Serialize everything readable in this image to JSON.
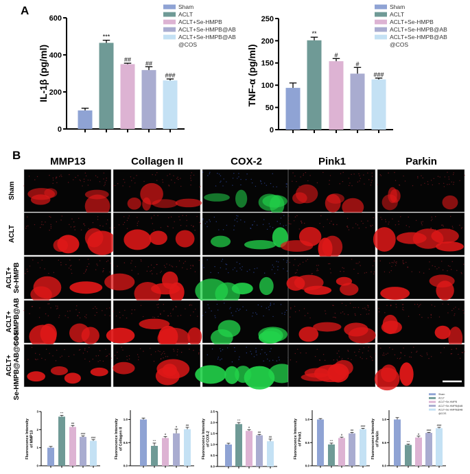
{
  "panel_labels": {
    "a": "A",
    "b": "B"
  },
  "groups": [
    "Sham",
    "ACLT",
    "ACLT+Se-HMPB",
    "ACLT+Se-HMPB@AB",
    "ACLT+Se-HMPB@AB@COS"
  ],
  "legend_entries": [
    "Sham",
    "ACLT",
    "ACLT+Se-HMPB",
    "ACLT+Se-HMPB@AB",
    "ACLT+Se-HMPB@AB",
    "@COS"
  ],
  "colors": {
    "Sham": "#8fa3d4",
    "ACLT": "#6f9a96",
    "ACLT+Se-HMPB": "#ddb3d3",
    "ACLT+Se-HMPB@AB": "#a9acd0",
    "ACLT+Se-HMPB@AB@COS": "#c4e1f4"
  },
  "image_grid": {
    "columns": [
      "MMP13",
      "Collagen II",
      "COX-2",
      "Pink1",
      "Parkin"
    ],
    "rows": [
      [
        "Sham"
      ],
      [
        "ACLT"
      ],
      [
        "ACLT+",
        "Se-HMPB"
      ],
      [
        "ACLT+",
        "Se-HMPB@AB"
      ],
      [
        "ACLT+",
        "Se-HMPB@AB@COS"
      ]
    ],
    "stain_colors": {
      "MMP13": "#e01818",
      "Collagen II": "#e01818",
      "COX-2": "#22d24a",
      "Pink1": "#e01818",
      "Parkin": "#e01818"
    },
    "scale_bar": true
  },
  "chart_data": [
    {
      "type": "bar",
      "id": "il1b",
      "ylabel": "IL-1β (pg/ml)",
      "ylim": [
        0,
        600
      ],
      "yticks": [
        "0",
        "200",
        "400",
        "600"
      ],
      "categories": [
        "Sham",
        "ACLT",
        "ACLT+Se-HMPB",
        "ACLT+Se-HMPB@AB",
        "ACLT+Se-HMPB@AB@COS"
      ],
      "values": [
        100,
        465,
        350,
        318,
        262
      ],
      "errors": [
        12,
        14,
        5,
        18,
        8
      ],
      "annotations": [
        "",
        "***",
        "##",
        "##",
        "###"
      ],
      "legend": "top-right"
    },
    {
      "type": "bar",
      "id": "tnfa",
      "ylabel": "TNF-α (pg/ml)",
      "ylim": [
        0,
        250
      ],
      "yticks": [
        "0",
        "50",
        "100",
        "150",
        "200",
        "250"
      ],
      "categories": [
        "Sham",
        "ACLT",
        "ACLT+Se-HMPB",
        "ACLT+Se-HMPB@AB",
        "ACLT+Se-HMPB@AB@COS"
      ],
      "values": [
        94,
        201,
        154,
        126,
        113
      ],
      "errors": [
        11,
        7,
        6,
        14,
        3
      ],
      "annotations": [
        "",
        "**",
        "#",
        "#",
        "###"
      ],
      "legend": "top-right"
    },
    {
      "type": "bar",
      "id": "mmp13",
      "ylabel": [
        "Fluorescence Intensity",
        "of MMP13"
      ],
      "ylim": [
        0,
        3
      ],
      "yticks": [
        "0",
        "1",
        "2",
        "3"
      ],
      "values": [
        1.0,
        2.72,
        2.15,
        1.6,
        1.38
      ],
      "errors": [
        0.07,
        0.07,
        0.08,
        0.06,
        0.07
      ],
      "annotations": [
        "",
        "***",
        "##",
        "###",
        "###"
      ]
    },
    {
      "type": "bar",
      "id": "col2",
      "ylabel": [
        "Fluorescence Intensity",
        "of Collagen II"
      ],
      "ylim": [
        0,
        1.2
      ],
      "yticks": [
        "0.0",
        "0.5",
        "1.0"
      ],
      "values": [
        1.0,
        0.43,
        0.6,
        0.7,
        0.79
      ],
      "errors": [
        0.03,
        0.06,
        0.03,
        0.09,
        0.04
      ],
      "annotations": [
        "",
        "***",
        "#",
        "#",
        "##"
      ]
    },
    {
      "type": "bar",
      "id": "cox2",
      "ylabel": [
        "Fluorescence Intensity",
        "of COX-2"
      ],
      "ylim": [
        0,
        2.5
      ],
      "yticks": [
        "0.0",
        "0.5",
        "1.0",
        "1.5",
        "2.0",
        "2.5"
      ],
      "values": [
        1.0,
        1.93,
        1.62,
        1.42,
        1.15
      ],
      "errors": [
        0.06,
        0.07,
        0.05,
        0.04,
        0.1
      ],
      "annotations": [
        "",
        "***",
        "#",
        "##",
        "##"
      ]
    },
    {
      "type": "bar",
      "id": "pink1",
      "ylabel": [
        "Fluorescence Intensity",
        "of Pink1"
      ],
      "ylim": [
        0,
        1.2
      ],
      "yticks": [
        "0.0",
        "0.5",
        "1.0"
      ],
      "values": [
        1.0,
        0.46,
        0.6,
        0.7,
        0.79
      ],
      "errors": [
        0.02,
        0.03,
        0.02,
        0.02,
        0.02
      ],
      "annotations": [
        "",
        "***",
        "#",
        "##",
        "###"
      ]
    },
    {
      "type": "bar",
      "id": "parkin",
      "ylabel": [
        "Fluorescence Intensity",
        "of Parkin"
      ],
      "ylim": [
        0,
        1.2
      ],
      "yticks": [
        "0.0",
        "0.5",
        "1.0"
      ],
      "values": [
        1.0,
        0.45,
        0.61,
        0.71,
        0.81
      ],
      "errors": [
        0.04,
        0.02,
        0.03,
        0.01,
        0.02
      ],
      "annotations": [
        "",
        "***",
        "#",
        "###",
        "###"
      ],
      "legend": "top-right"
    }
  ]
}
